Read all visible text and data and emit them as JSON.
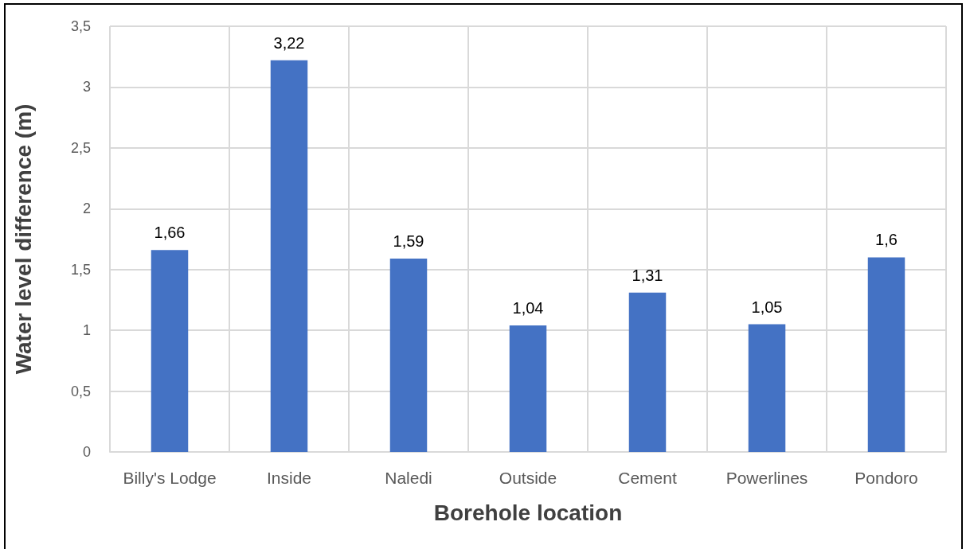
{
  "chart_data": {
    "type": "bar",
    "xlabel": "Borehole location",
    "ylabel": "Water level difference (m)",
    "categories": [
      "Billy's Lodge",
      "Inside",
      "Naledi",
      "Outside",
      "Cement",
      "Powerlines",
      "Pondoro"
    ],
    "values": [
      1.66,
      3.22,
      1.59,
      1.04,
      1.31,
      1.05,
      1.6
    ],
    "value_labels": [
      "1,66",
      "3,22",
      "1,59",
      "1,04",
      "1,31",
      "1,05",
      "1,6"
    ],
    "color": "#4472c4",
    "ylim": [
      0,
      3.5
    ],
    "yticks": [
      0,
      {
        "value": 0.5,
        "label": "0,5"
      },
      1,
      {
        "value": 1.5,
        "label": "1,5"
      },
      2,
      {
        "value": 2.5,
        "label": "2,5"
      },
      3,
      {
        "value": 3.5,
        "label": "3,5"
      }
    ],
    "grid": true
  }
}
